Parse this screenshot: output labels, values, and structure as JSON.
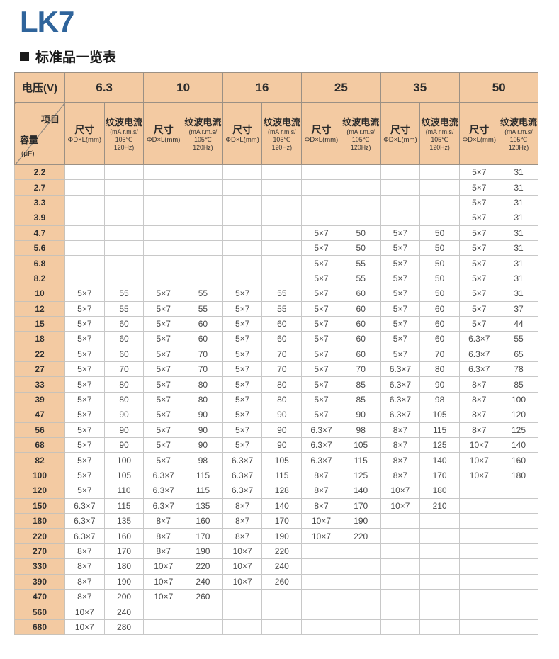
{
  "page": {
    "title": "LK7",
    "section_title": "标准品一览表",
    "title_color": "#2F649B",
    "header_bg_color": "#F3CAA2"
  },
  "table": {
    "corner": {
      "voltage_label": "电压(V)",
      "item_label": "项目",
      "capacity_label": "容量",
      "capacity_unit": "(μF)"
    },
    "voltages": [
      "6.3",
      "10",
      "16",
      "25",
      "35",
      "50"
    ],
    "subheaders": {
      "size_label": "尺寸",
      "size_sub": "ΦD×L(mm)",
      "ripple_label": "纹波电流",
      "ripple_sub1": "(mA r.m.s/",
      "ripple_sub2": "105℃ 120Hz)"
    },
    "rows": [
      {
        "capacity": "2.2",
        "cells": [
          "",
          "",
          "",
          "",
          "",
          "",
          "",
          "",
          "",
          "",
          "5×7",
          "31"
        ]
      },
      {
        "capacity": "2.7",
        "cells": [
          "",
          "",
          "",
          "",
          "",
          "",
          "",
          "",
          "",
          "",
          "5×7",
          "31"
        ]
      },
      {
        "capacity": "3.3",
        "cells": [
          "",
          "",
          "",
          "",
          "",
          "",
          "",
          "",
          "",
          "",
          "5×7",
          "31"
        ]
      },
      {
        "capacity": "3.9",
        "cells": [
          "",
          "",
          "",
          "",
          "",
          "",
          "",
          "",
          "",
          "",
          "5×7",
          "31"
        ]
      },
      {
        "capacity": "4.7",
        "cells": [
          "",
          "",
          "",
          "",
          "",
          "",
          "5×7",
          "50",
          "5×7",
          "50",
          "5×7",
          "31"
        ]
      },
      {
        "capacity": "5.6",
        "cells": [
          "",
          "",
          "",
          "",
          "",
          "",
          "5×7",
          "50",
          "5×7",
          "50",
          "5×7",
          "31"
        ]
      },
      {
        "capacity": "6.8",
        "cells": [
          "",
          "",
          "",
          "",
          "",
          "",
          "5×7",
          "55",
          "5×7",
          "50",
          "5×7",
          "31"
        ]
      },
      {
        "capacity": "8.2",
        "cells": [
          "",
          "",
          "",
          "",
          "",
          "",
          "5×7",
          "55",
          "5×7",
          "50",
          "5×7",
          "31"
        ]
      },
      {
        "capacity": "10",
        "cells": [
          "5×7",
          "55",
          "5×7",
          "55",
          "5×7",
          "55",
          "5×7",
          "60",
          "5×7",
          "50",
          "5×7",
          "31"
        ]
      },
      {
        "capacity": "12",
        "cells": [
          "5×7",
          "55",
          "5×7",
          "55",
          "5×7",
          "55",
          "5×7",
          "60",
          "5×7",
          "60",
          "5×7",
          "37"
        ]
      },
      {
        "capacity": "15",
        "cells": [
          "5×7",
          "60",
          "5×7",
          "60",
          "5×7",
          "60",
          "5×7",
          "60",
          "5×7",
          "60",
          "5×7",
          "44"
        ]
      },
      {
        "capacity": "18",
        "cells": [
          "5×7",
          "60",
          "5×7",
          "60",
          "5×7",
          "60",
          "5×7",
          "60",
          "5×7",
          "60",
          "6.3×7",
          "55"
        ]
      },
      {
        "capacity": "22",
        "cells": [
          "5×7",
          "60",
          "5×7",
          "70",
          "5×7",
          "70",
          "5×7",
          "60",
          "5×7",
          "70",
          "6.3×7",
          "65"
        ]
      },
      {
        "capacity": "27",
        "cells": [
          "5×7",
          "70",
          "5×7",
          "70",
          "5×7",
          "70",
          "5×7",
          "70",
          "6.3×7",
          "80",
          "6.3×7",
          "78"
        ]
      },
      {
        "capacity": "33",
        "cells": [
          "5×7",
          "80",
          "5×7",
          "80",
          "5×7",
          "80",
          "5×7",
          "85",
          "6.3×7",
          "90",
          "8×7",
          "85"
        ]
      },
      {
        "capacity": "39",
        "cells": [
          "5×7",
          "80",
          "5×7",
          "80",
          "5×7",
          "80",
          "5×7",
          "85",
          "6.3×7",
          "98",
          "8×7",
          "100"
        ]
      },
      {
        "capacity": "47",
        "cells": [
          "5×7",
          "90",
          "5×7",
          "90",
          "5×7",
          "90",
          "5×7",
          "90",
          "6.3×7",
          "105",
          "8×7",
          "120"
        ]
      },
      {
        "capacity": "56",
        "cells": [
          "5×7",
          "90",
          "5×7",
          "90",
          "5×7",
          "90",
          "6.3×7",
          "98",
          "8×7",
          "115",
          "8×7",
          "125"
        ]
      },
      {
        "capacity": "68",
        "cells": [
          "5×7",
          "90",
          "5×7",
          "90",
          "5×7",
          "90",
          "6.3×7",
          "105",
          "8×7",
          "125",
          "10×7",
          "140"
        ]
      },
      {
        "capacity": "82",
        "cells": [
          "5×7",
          "100",
          "5×7",
          "98",
          "6.3×7",
          "105",
          "6.3×7",
          "115",
          "8×7",
          "140",
          "10×7",
          "160"
        ]
      },
      {
        "capacity": "100",
        "cells": [
          "5×7",
          "105",
          "6.3×7",
          "115",
          "6.3×7",
          "115",
          "8×7",
          "125",
          "8×7",
          "170",
          "10×7",
          "180"
        ]
      },
      {
        "capacity": "120",
        "cells": [
          "5×7",
          "110",
          "6.3×7",
          "115",
          "6.3×7",
          "128",
          "8×7",
          "140",
          "10×7",
          "180",
          "",
          ""
        ]
      },
      {
        "capacity": "150",
        "cells": [
          "6.3×7",
          "115",
          "6.3×7",
          "135",
          "8×7",
          "140",
          "8×7",
          "170",
          "10×7",
          "210",
          "",
          ""
        ]
      },
      {
        "capacity": "180",
        "cells": [
          "6.3×7",
          "135",
          "8×7",
          "160",
          "8×7",
          "170",
          "10×7",
          "190",
          "",
          "",
          "",
          ""
        ]
      },
      {
        "capacity": "220",
        "cells": [
          "6.3×7",
          "160",
          "8×7",
          "170",
          "8×7",
          "190",
          "10×7",
          "220",
          "",
          "",
          "",
          ""
        ]
      },
      {
        "capacity": "270",
        "cells": [
          "8×7",
          "170",
          "8×7",
          "190",
          "10×7",
          "220",
          "",
          "",
          "",
          "",
          "",
          ""
        ]
      },
      {
        "capacity": "330",
        "cells": [
          "8×7",
          "180",
          "10×7",
          "220",
          "10×7",
          "240",
          "",
          "",
          "",
          "",
          "",
          ""
        ]
      },
      {
        "capacity": "390",
        "cells": [
          "8×7",
          "190",
          "10×7",
          "240",
          "10×7",
          "260",
          "",
          "",
          "",
          "",
          "",
          ""
        ]
      },
      {
        "capacity": "470",
        "cells": [
          "8×7",
          "200",
          "10×7",
          "260",
          "",
          "",
          "",
          "",
          "",
          "",
          "",
          ""
        ]
      },
      {
        "capacity": "560",
        "cells": [
          "10×7",
          "240",
          "",
          "",
          "",
          "",
          "",
          "",
          "",
          "",
          "",
          ""
        ]
      },
      {
        "capacity": "680",
        "cells": [
          "10×7",
          "280",
          "",
          "",
          "",
          "",
          "",
          "",
          "",
          "",
          "",
          ""
        ]
      }
    ]
  }
}
